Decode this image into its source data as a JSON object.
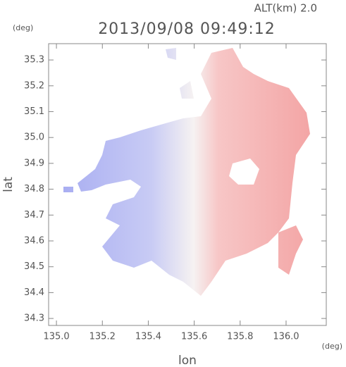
{
  "chart_data": {
    "type": "map",
    "title": "2013/09/08 09:49:12",
    "subtitle": "ALT(km) 2.0",
    "x_label": "lon",
    "y_label": "lat",
    "x_unit": "(deg)",
    "y_unit": "(deg)",
    "xlim": [
      134.966,
      136.175
    ],
    "ylim": [
      34.273,
      35.363
    ],
    "xticks": [
      {
        "value": 135,
        "label": "135.0"
      },
      135.2,
      135.4,
      135.6,
      135.8,
      {
        "value": 136,
        "label": "136.0"
      }
    ],
    "yticks": [
      34.3,
      34.4,
      34.5,
      34.6,
      34.7,
      34.8,
      34.9,
      {
        "value": 35,
        "label": "35.0"
      },
      35.1,
      35.2,
      35.3
    ]
  }
}
